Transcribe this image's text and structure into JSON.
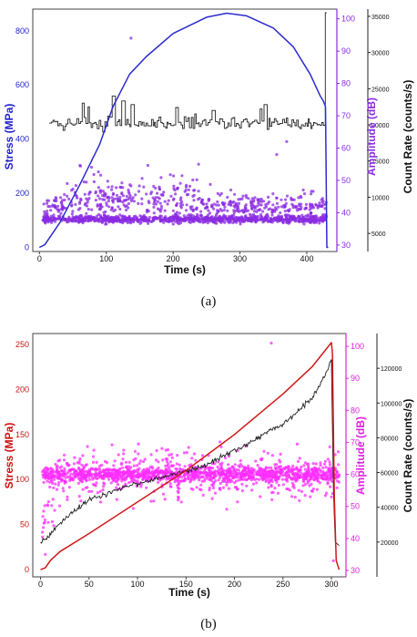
{
  "chart_data": [
    {
      "id": "a",
      "type": "scatter",
      "caption": "(a)",
      "xlabel": "Time (s)",
      "xlim": [
        -10,
        445
      ],
      "xticks": [
        "0",
        "100",
        "200",
        "300",
        "400"
      ],
      "y_left": {
        "label": "Stress (MPa)",
        "color": "#2222cc",
        "lim": [
          -15,
          880
        ],
        "ticks": [
          "0",
          "200",
          "400",
          "600",
          "800"
        ]
      },
      "y_amp": {
        "label": "Amplitude (dB)",
        "color": "#8a2be2",
        "lim": [
          28,
          103
        ],
        "ticks": [
          "30",
          "40",
          "50",
          "60",
          "70",
          "80",
          "90",
          "100"
        ]
      },
      "y_count": {
        "label": "Count Rate (counts/s)",
        "color": "#111111",
        "lim": [
          2500,
          36000
        ],
        "ticks": [
          "5000",
          "10000",
          "15000",
          "20000",
          "25000",
          "30000",
          "35000"
        ]
      },
      "stress_series": {
        "axis": "left",
        "color": "#2b2bd0",
        "x": [
          0,
          8,
          30,
          60,
          90,
          110,
          135,
          160,
          200,
          250,
          280,
          310,
          350,
          380,
          405,
          420,
          425,
          428,
          430,
          432
        ],
        "y": [
          0,
          10,
          90,
          230,
          380,
          520,
          640,
          705,
          790,
          850,
          865,
          855,
          810,
          740,
          640,
          560,
          540,
          520,
          0,
          0
        ]
      },
      "count_series": {
        "axis": "count",
        "color": "#222222",
        "x_range": [
          15,
          430
        ],
        "base": 20200,
        "spread": 1500,
        "events": [
          {
            "x": 65,
            "value": 23000
          },
          {
            "x": 72,
            "value": 22500
          },
          {
            "x": 110,
            "value": 24000
          },
          {
            "x": 125,
            "value": 23300
          },
          {
            "x": 138,
            "value": 22800
          },
          {
            "x": 205,
            "value": 22400
          },
          {
            "x": 260,
            "value": 22000
          },
          {
            "x": 330,
            "value": 22200
          },
          {
            "x": 338,
            "value": 22800
          },
          {
            "x": 428,
            "value": 35500
          }
        ]
      },
      "amplitude_points": {
        "axis": "amp",
        "color": "#8a2be2",
        "x_range": [
          5,
          430
        ],
        "band_center": 38,
        "band_spread": 2,
        "band_count": 900,
        "scatter_count": 550,
        "outliers": [
          {
            "x": 137,
            "value": 94
          },
          {
            "x": 370,
            "value": 62
          },
          {
            "x": 355,
            "value": 58
          }
        ]
      }
    },
    {
      "id": "b",
      "type": "scatter",
      "caption": "(b)",
      "xlabel": "Time (s)",
      "xlim": [
        -8,
        315
      ],
      "xticks": [
        "0",
        "50",
        "100",
        "150",
        "200",
        "250",
        "300"
      ],
      "y_left": {
        "label": "Stress (MPa)",
        "color": "#cc1111",
        "lim": [
          -8,
          262
        ],
        "ticks": [
          "0",
          "50",
          "100",
          "150",
          "200",
          "250"
        ]
      },
      "y_amp": {
        "label": "Amplitude (dB)",
        "color": "#e020e0",
        "lim": [
          28,
          104
        ],
        "ticks": [
          "30",
          "40",
          "50",
          "60",
          "70",
          "80",
          "90",
          "100"
        ]
      },
      "y_count": {
        "label": "Count Rate (counts/s)",
        "color": "#111111",
        "lim": [
          0,
          140000
        ],
        "ticks": [
          "20000",
          "40000",
          "60000",
          "80000",
          "100000",
          "120000"
        ]
      },
      "stress_series": {
        "axis": "left",
        "color": "#d01818",
        "x": [
          0,
          5,
          10,
          20,
          50,
          100,
          150,
          200,
          250,
          280,
          300,
          301,
          303,
          305,
          308
        ],
        "y": [
          0,
          2,
          10,
          20,
          40,
          75,
          110,
          150,
          195,
          225,
          252,
          240,
          80,
          10,
          0
        ]
      },
      "count_series": {
        "axis": "count",
        "color": "#222222",
        "x": [
          0,
          8,
          15,
          30,
          50,
          70,
          90,
          110,
          130,
          150,
          170,
          190,
          210,
          230,
          250,
          265,
          280,
          290,
          300,
          302,
          304,
          308
        ],
        "y": [
          20000,
          23000,
          28000,
          36000,
          44000,
          48000,
          52000,
          55000,
          58000,
          61000,
          64000,
          70000,
          75000,
          82000,
          88000,
          95000,
          103000,
          112000,
          125000,
          50000,
          20000,
          18000
        ]
      },
      "amplitude_points": {
        "axis": "amp",
        "color": "#ff2cff",
        "x_range": [
          2,
          308
        ],
        "band_center": 60,
        "band_spread": 4,
        "band_count": 1100,
        "scatter_count": 500,
        "outliers": [
          {
            "x": 238,
            "value": 101
          },
          {
            "x": 5,
            "value": 35
          },
          {
            "x": 302,
            "value": 33
          }
        ]
      }
    }
  ]
}
